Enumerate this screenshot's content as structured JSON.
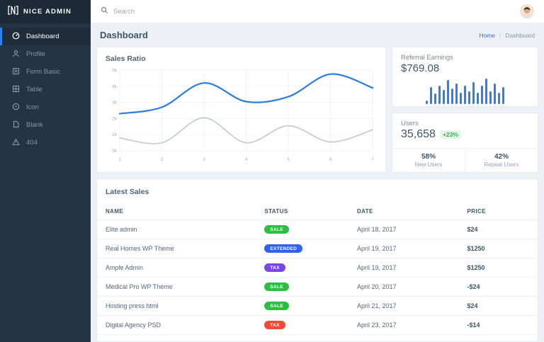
{
  "brand": {
    "name": "NICE ADMIN"
  },
  "topbar": {
    "search_placeholder": "Search"
  },
  "page": {
    "title": "Dashboard",
    "breadcrumb": {
      "home": "Home",
      "separator": "/",
      "current": "Dashboard"
    }
  },
  "sidebar": {
    "items": [
      {
        "label": "Dashboard",
        "icon": "speedometer-icon",
        "active": true
      },
      {
        "label": "Profile",
        "icon": "user-icon",
        "active": false
      },
      {
        "label": "Form Basic",
        "icon": "form-icon",
        "active": false
      },
      {
        "label": "Table",
        "icon": "table-icon",
        "active": false
      },
      {
        "label": "Icon",
        "icon": "icons-icon",
        "active": false
      },
      {
        "label": "Blank",
        "icon": "file-icon",
        "active": false
      },
      {
        "label": "404",
        "icon": "warning-icon",
        "active": false
      }
    ]
  },
  "cards": {
    "sales_ratio": {
      "title": "Sales Ratio"
    },
    "referral_earnings": {
      "title": "Referral Earnings",
      "amount": "$769.08"
    },
    "users": {
      "title": "Users",
      "count": "35,658",
      "growth": "+23%",
      "stats": [
        {
          "value": "58%",
          "label": "New Users"
        },
        {
          "value": "42%",
          "label": "Repeat Users"
        }
      ]
    }
  },
  "latest_sales": {
    "title": "Latest Sales",
    "columns": [
      "NAME",
      "STATUS",
      "DATE",
      "PRICE"
    ],
    "rows": [
      {
        "name": "Elite admin",
        "status": "SALE",
        "status_color": "#2abf3e",
        "date": "April 18, 2017",
        "price": "$24"
      },
      {
        "name": "Real Homes WP Theme",
        "status": "EXTENDED",
        "status_color": "#2d62f5",
        "date": "April 19, 2017",
        "price": "$1250"
      },
      {
        "name": "Ample Admin",
        "status": "TAX",
        "status_color": "#7b46e8",
        "date": "April 19, 2017",
        "price": "$1250"
      },
      {
        "name": "Medical Pro WP Theme",
        "status": "SALE",
        "status_color": "#2abf3e",
        "date": "April 20, 2017",
        "price": "-$24"
      },
      {
        "name": "Hosting press html",
        "status": "SALE",
        "status_color": "#2abf3e",
        "date": "April 21, 2017",
        "price": "$24"
      },
      {
        "name": "Digital Agency PSD",
        "status": "TAX",
        "status_color": "#ef4a38",
        "date": "April 23, 2017",
        "price": "-$14"
      }
    ]
  },
  "chart_data": [
    {
      "type": "line",
      "title": "Sales Ratio",
      "x": [
        1,
        2,
        3,
        4,
        5,
        6,
        7
      ],
      "xticklabels": [
        "1",
        "2",
        "3",
        "4",
        "5",
        "6",
        "7"
      ],
      "ylim": [
        0,
        5
      ],
      "yticks": [
        0,
        1,
        2,
        3,
        4,
        5
      ],
      "yticklabels": [
        "0k",
        "1k",
        "2k",
        "3k",
        "4k",
        "5k"
      ],
      "grid": true,
      "legend": false,
      "series": [
        {
          "name": "sales",
          "color": "#2b7cdf",
          "values": [
            2.3,
            2.7,
            4.2,
            3.05,
            3.35,
            4.75,
            3.9
          ]
        },
        {
          "name": "secondary",
          "color": "#c8cdd3",
          "values": [
            0.8,
            0.5,
            2.05,
            0.5,
            1.55,
            0.55,
            1.3
          ]
        }
      ]
    },
    {
      "type": "bar",
      "title": "Referral Earnings sparkline",
      "color": "#2d7ff0",
      "values": [
        10,
        45,
        28,
        50,
        38,
        65,
        42,
        55,
        30,
        50,
        34,
        58,
        30,
        50,
        68,
        34,
        55,
        30,
        46
      ]
    }
  ],
  "colors": {
    "sidebar_bg": "#243444",
    "sidebar_top_bg": "#1b2938",
    "accent_blue": "#2d7ff0",
    "content_bg": "#edf0f5",
    "positive_green": "#2fb344"
  }
}
